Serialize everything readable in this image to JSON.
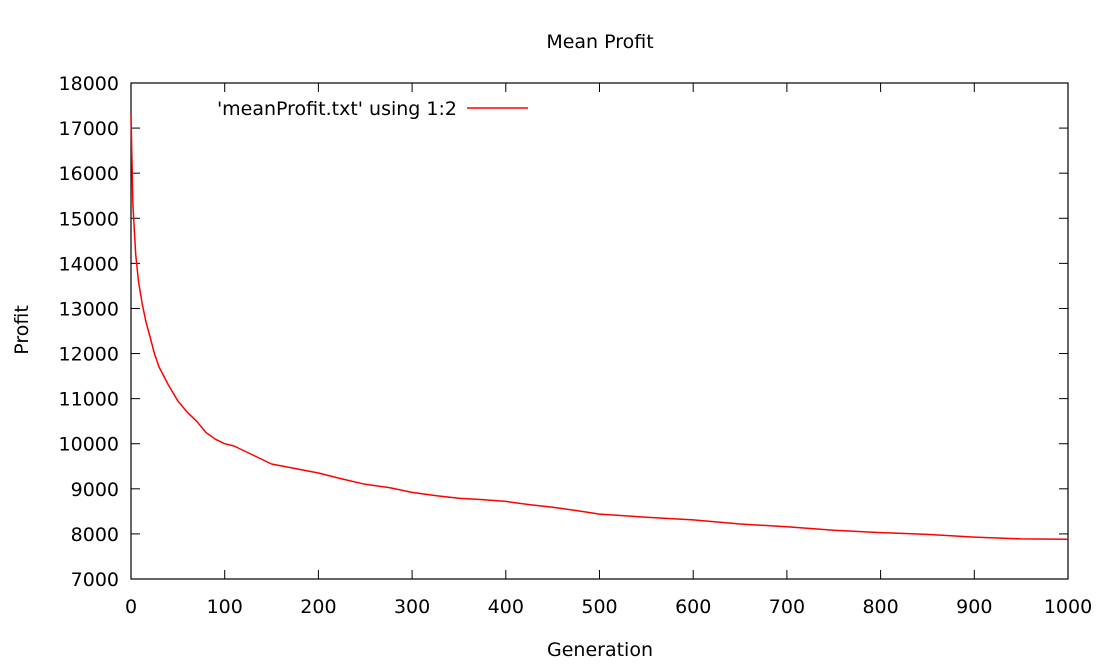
{
  "chart_data": {
    "type": "line",
    "title": "Mean Profit",
    "xlabel": "Generation",
    "ylabel": "Profit",
    "xlim": [
      0,
      1000
    ],
    "ylim": [
      7000,
      18000
    ],
    "xticks": [
      "0",
      "100",
      "200",
      "300",
      "400",
      "500",
      "600",
      "700",
      "800",
      "900",
      "1000"
    ],
    "yticks": [
      "7000",
      "8000",
      "9000",
      "10000",
      "11000",
      "12000",
      "13000",
      "14000",
      "15000",
      "16000",
      "17000",
      "18000"
    ],
    "grid": false,
    "legend_position": "top-left",
    "series": [
      {
        "name": "'meanProfit.txt' using 1:2",
        "color": "#ff0000",
        "points": [
          [
            0,
            17300
          ],
          [
            2,
            15300
          ],
          [
            5,
            14200
          ],
          [
            8,
            13600
          ],
          [
            12,
            13100
          ],
          [
            16,
            12700
          ],
          [
            20,
            12400
          ],
          [
            25,
            12000
          ],
          [
            30,
            11700
          ],
          [
            40,
            11300
          ],
          [
            50,
            10950
          ],
          [
            60,
            10700
          ],
          [
            70,
            10500
          ],
          [
            80,
            10250
          ],
          [
            90,
            10100
          ],
          [
            100,
            10000
          ],
          [
            110,
            9950
          ],
          [
            120,
            9850
          ],
          [
            130,
            9750
          ],
          [
            140,
            9650
          ],
          [
            150,
            9550
          ],
          [
            175,
            9450
          ],
          [
            200,
            9350
          ],
          [
            225,
            9220
          ],
          [
            250,
            9100
          ],
          [
            275,
            9030
          ],
          [
            300,
            8920
          ],
          [
            325,
            8850
          ],
          [
            350,
            8790
          ],
          [
            375,
            8760
          ],
          [
            400,
            8720
          ],
          [
            425,
            8650
          ],
          [
            450,
            8590
          ],
          [
            475,
            8520
          ],
          [
            500,
            8440
          ],
          [
            550,
            8370
          ],
          [
            600,
            8310
          ],
          [
            650,
            8220
          ],
          [
            700,
            8160
          ],
          [
            750,
            8080
          ],
          [
            800,
            8030
          ],
          [
            850,
            7990
          ],
          [
            900,
            7930
          ],
          [
            950,
            7890
          ],
          [
            1000,
            7880
          ]
        ]
      }
    ]
  }
}
